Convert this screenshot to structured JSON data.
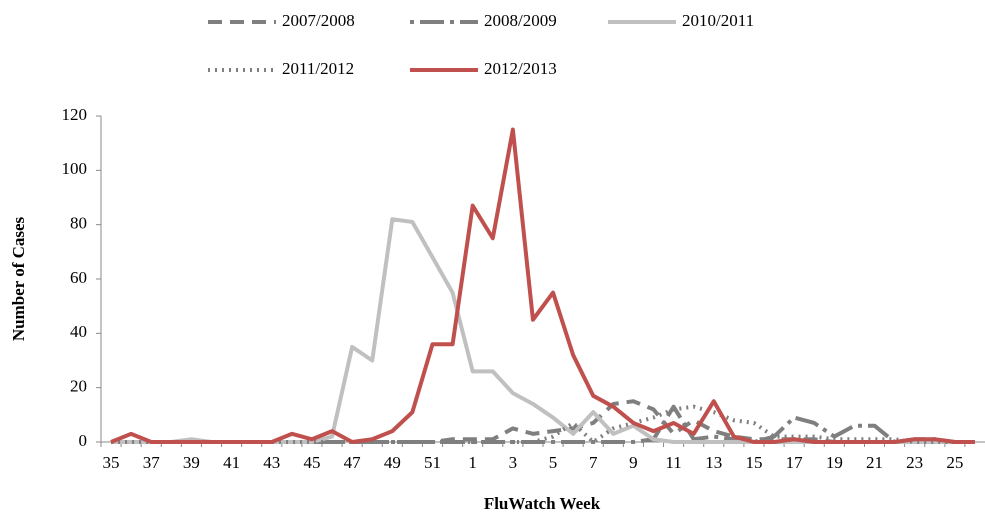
{
  "chart_data": {
    "type": "line",
    "xlabel": "FluWatch Week",
    "ylabel": "Number of Cases",
    "categories": [
      "35",
      null,
      "37",
      null,
      "39",
      null,
      "41",
      null,
      "43",
      null,
      "45",
      null,
      "47",
      null,
      "49",
      null,
      "51",
      null,
      "1",
      null,
      "3",
      null,
      "5",
      null,
      "7",
      null,
      "9",
      null,
      "11",
      null,
      "13",
      null,
      "15",
      null,
      "17",
      null,
      "19",
      null,
      "21",
      null,
      "23",
      null,
      "25",
      null
    ],
    "ylim": [
      0,
      120
    ],
    "yticks": [
      0,
      20,
      40,
      60,
      80,
      100,
      120
    ],
    "legend": "top",
    "series": [
      {
        "name": "2007/2008",
        "color": "#7f7f7f",
        "dash": "14,8",
        "values": [
          0,
          0,
          0,
          0,
          0,
          0,
          0,
          0,
          0,
          0,
          0,
          0,
          0,
          0,
          0,
          0,
          0,
          1,
          1,
          1,
          5,
          3,
          4,
          5,
          7,
          14,
          15,
          12,
          3,
          8,
          4,
          2,
          1,
          1,
          1,
          1,
          0,
          0,
          0,
          0,
          0,
          0,
          0,
          0
        ]
      },
      {
        "name": "2008/2009",
        "color": "#7f7f7f",
        "dash": "4,6,24,6",
        "values": [
          0,
          0,
          0,
          0,
          0,
          0,
          0,
          0,
          0,
          0,
          0,
          0,
          0,
          0,
          0,
          0,
          0,
          0,
          0,
          0,
          0,
          0,
          0,
          0,
          0,
          0,
          0,
          1,
          13,
          1,
          2,
          1,
          0,
          2,
          9,
          7,
          2,
          6,
          6,
          0,
          1,
          1,
          0,
          0
        ]
      },
      {
        "name": "2010/2011",
        "color": "#c0c0c0",
        "dash": "none",
        "values": [
          0,
          0,
          0,
          0,
          1,
          0,
          0,
          0,
          0,
          0,
          0,
          2,
          35,
          30,
          82,
          81,
          68,
          55,
          26,
          26,
          18,
          14,
          9,
          3,
          11,
          3,
          6,
          1,
          0,
          0,
          0,
          0,
          0,
          0,
          0,
          0,
          0,
          0,
          0,
          0,
          0,
          0,
          0,
          0
        ]
      },
      {
        "name": "2011/2012",
        "color": "#7f7f7f",
        "dash": "2,5",
        "values": [
          0,
          0,
          0,
          0,
          0,
          0,
          0,
          0,
          0,
          0,
          0,
          0,
          0,
          0,
          0,
          0,
          0,
          0,
          0,
          0,
          0,
          0,
          2,
          7,
          0,
          5,
          7,
          9,
          12,
          13,
          11,
          8,
          7,
          2,
          2,
          2,
          1,
          1,
          1,
          1,
          0,
          0,
          0,
          0
        ]
      },
      {
        "name": "2012/2013",
        "color": "#c0504d",
        "dash": "none",
        "values": [
          0,
          3,
          0,
          0,
          0,
          0,
          0,
          0,
          0,
          3,
          1,
          4,
          0,
          1,
          4,
          11,
          36,
          36,
          87,
          75,
          115,
          45,
          55,
          32,
          17,
          13,
          7,
          4,
          7,
          3,
          15,
          2,
          0,
          0,
          1,
          0,
          0,
          0,
          0,
          0,
          1,
          1,
          0,
          0
        ]
      }
    ]
  }
}
